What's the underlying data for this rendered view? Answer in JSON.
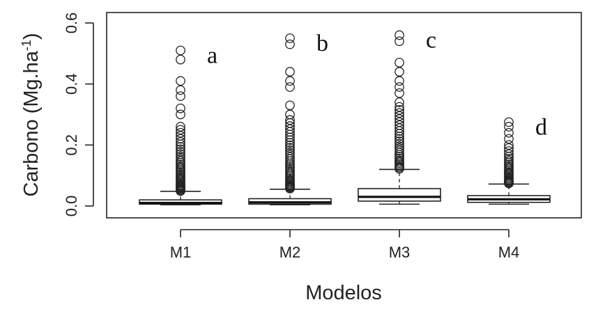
{
  "chart_data": {
    "type": "box",
    "title": "",
    "xlabel": "Modelos",
    "ylabel_main": "Carbono (Mg.ha",
    "ylabel_sup": "-1",
    "ylabel_close": ")",
    "ylim": [
      0.0,
      0.6
    ],
    "yticks": [
      "0.0",
      "0.2",
      "0.4",
      "0.6"
    ],
    "ytick_values": [
      0.0,
      0.2,
      0.4,
      0.6
    ],
    "categories": [
      "M1",
      "M2",
      "M3",
      "M4"
    ],
    "annotations": [
      "a",
      "b",
      "c",
      "d"
    ],
    "grid": false,
    "boxes": [
      {
        "name": "M1",
        "min": 0.004,
        "q1": 0.006,
        "median": 0.01,
        "q3": 0.02,
        "whisker_high": 0.048,
        "outliers": [
          0.049,
          0.052,
          0.055,
          0.058,
          0.061,
          0.064,
          0.067,
          0.07,
          0.074,
          0.078,
          0.082,
          0.086,
          0.09,
          0.095,
          0.1,
          0.105,
          0.11,
          0.115,
          0.12,
          0.125,
          0.13,
          0.136,
          0.142,
          0.148,
          0.155,
          0.162,
          0.17,
          0.178,
          0.186,
          0.194,
          0.202,
          0.21,
          0.22,
          0.23,
          0.24,
          0.25,
          0.26,
          0.3,
          0.32,
          0.36,
          0.38,
          0.41,
          0.48,
          0.51
        ]
      },
      {
        "name": "M2",
        "min": 0.004,
        "q1": 0.006,
        "median": 0.012,
        "q3": 0.024,
        "whisker_high": 0.055,
        "outliers": [
          0.057,
          0.06,
          0.063,
          0.066,
          0.069,
          0.073,
          0.077,
          0.081,
          0.085,
          0.09,
          0.095,
          0.1,
          0.105,
          0.11,
          0.116,
          0.122,
          0.128,
          0.134,
          0.14,
          0.147,
          0.154,
          0.161,
          0.168,
          0.175,
          0.183,
          0.191,
          0.199,
          0.207,
          0.216,
          0.225,
          0.234,
          0.243,
          0.252,
          0.262,
          0.272,
          0.282,
          0.3,
          0.33,
          0.39,
          0.41,
          0.44,
          0.53,
          0.55
        ]
      },
      {
        "name": "M3",
        "min": 0.006,
        "q1": 0.016,
        "median": 0.03,
        "q3": 0.057,
        "whisker_high": 0.12,
        "outliers": [
          0.122,
          0.126,
          0.13,
          0.135,
          0.14,
          0.145,
          0.15,
          0.156,
          0.162,
          0.168,
          0.175,
          0.182,
          0.189,
          0.196,
          0.204,
          0.212,
          0.22,
          0.228,
          0.237,
          0.246,
          0.255,
          0.265,
          0.275,
          0.285,
          0.295,
          0.305,
          0.315,
          0.325,
          0.34,
          0.37,
          0.39,
          0.41,
          0.44,
          0.47,
          0.54,
          0.56
        ]
      },
      {
        "name": "M4",
        "min": 0.006,
        "q1": 0.012,
        "median": 0.022,
        "q3": 0.034,
        "whisker_high": 0.072,
        "outliers": [
          0.074,
          0.077,
          0.08,
          0.083,
          0.086,
          0.09,
          0.094,
          0.098,
          0.102,
          0.106,
          0.11,
          0.115,
          0.12,
          0.125,
          0.13,
          0.136,
          0.142,
          0.148,
          0.155,
          0.162,
          0.17,
          0.18,
          0.19,
          0.2,
          0.22,
          0.24,
          0.26,
          0.275
        ]
      }
    ]
  }
}
